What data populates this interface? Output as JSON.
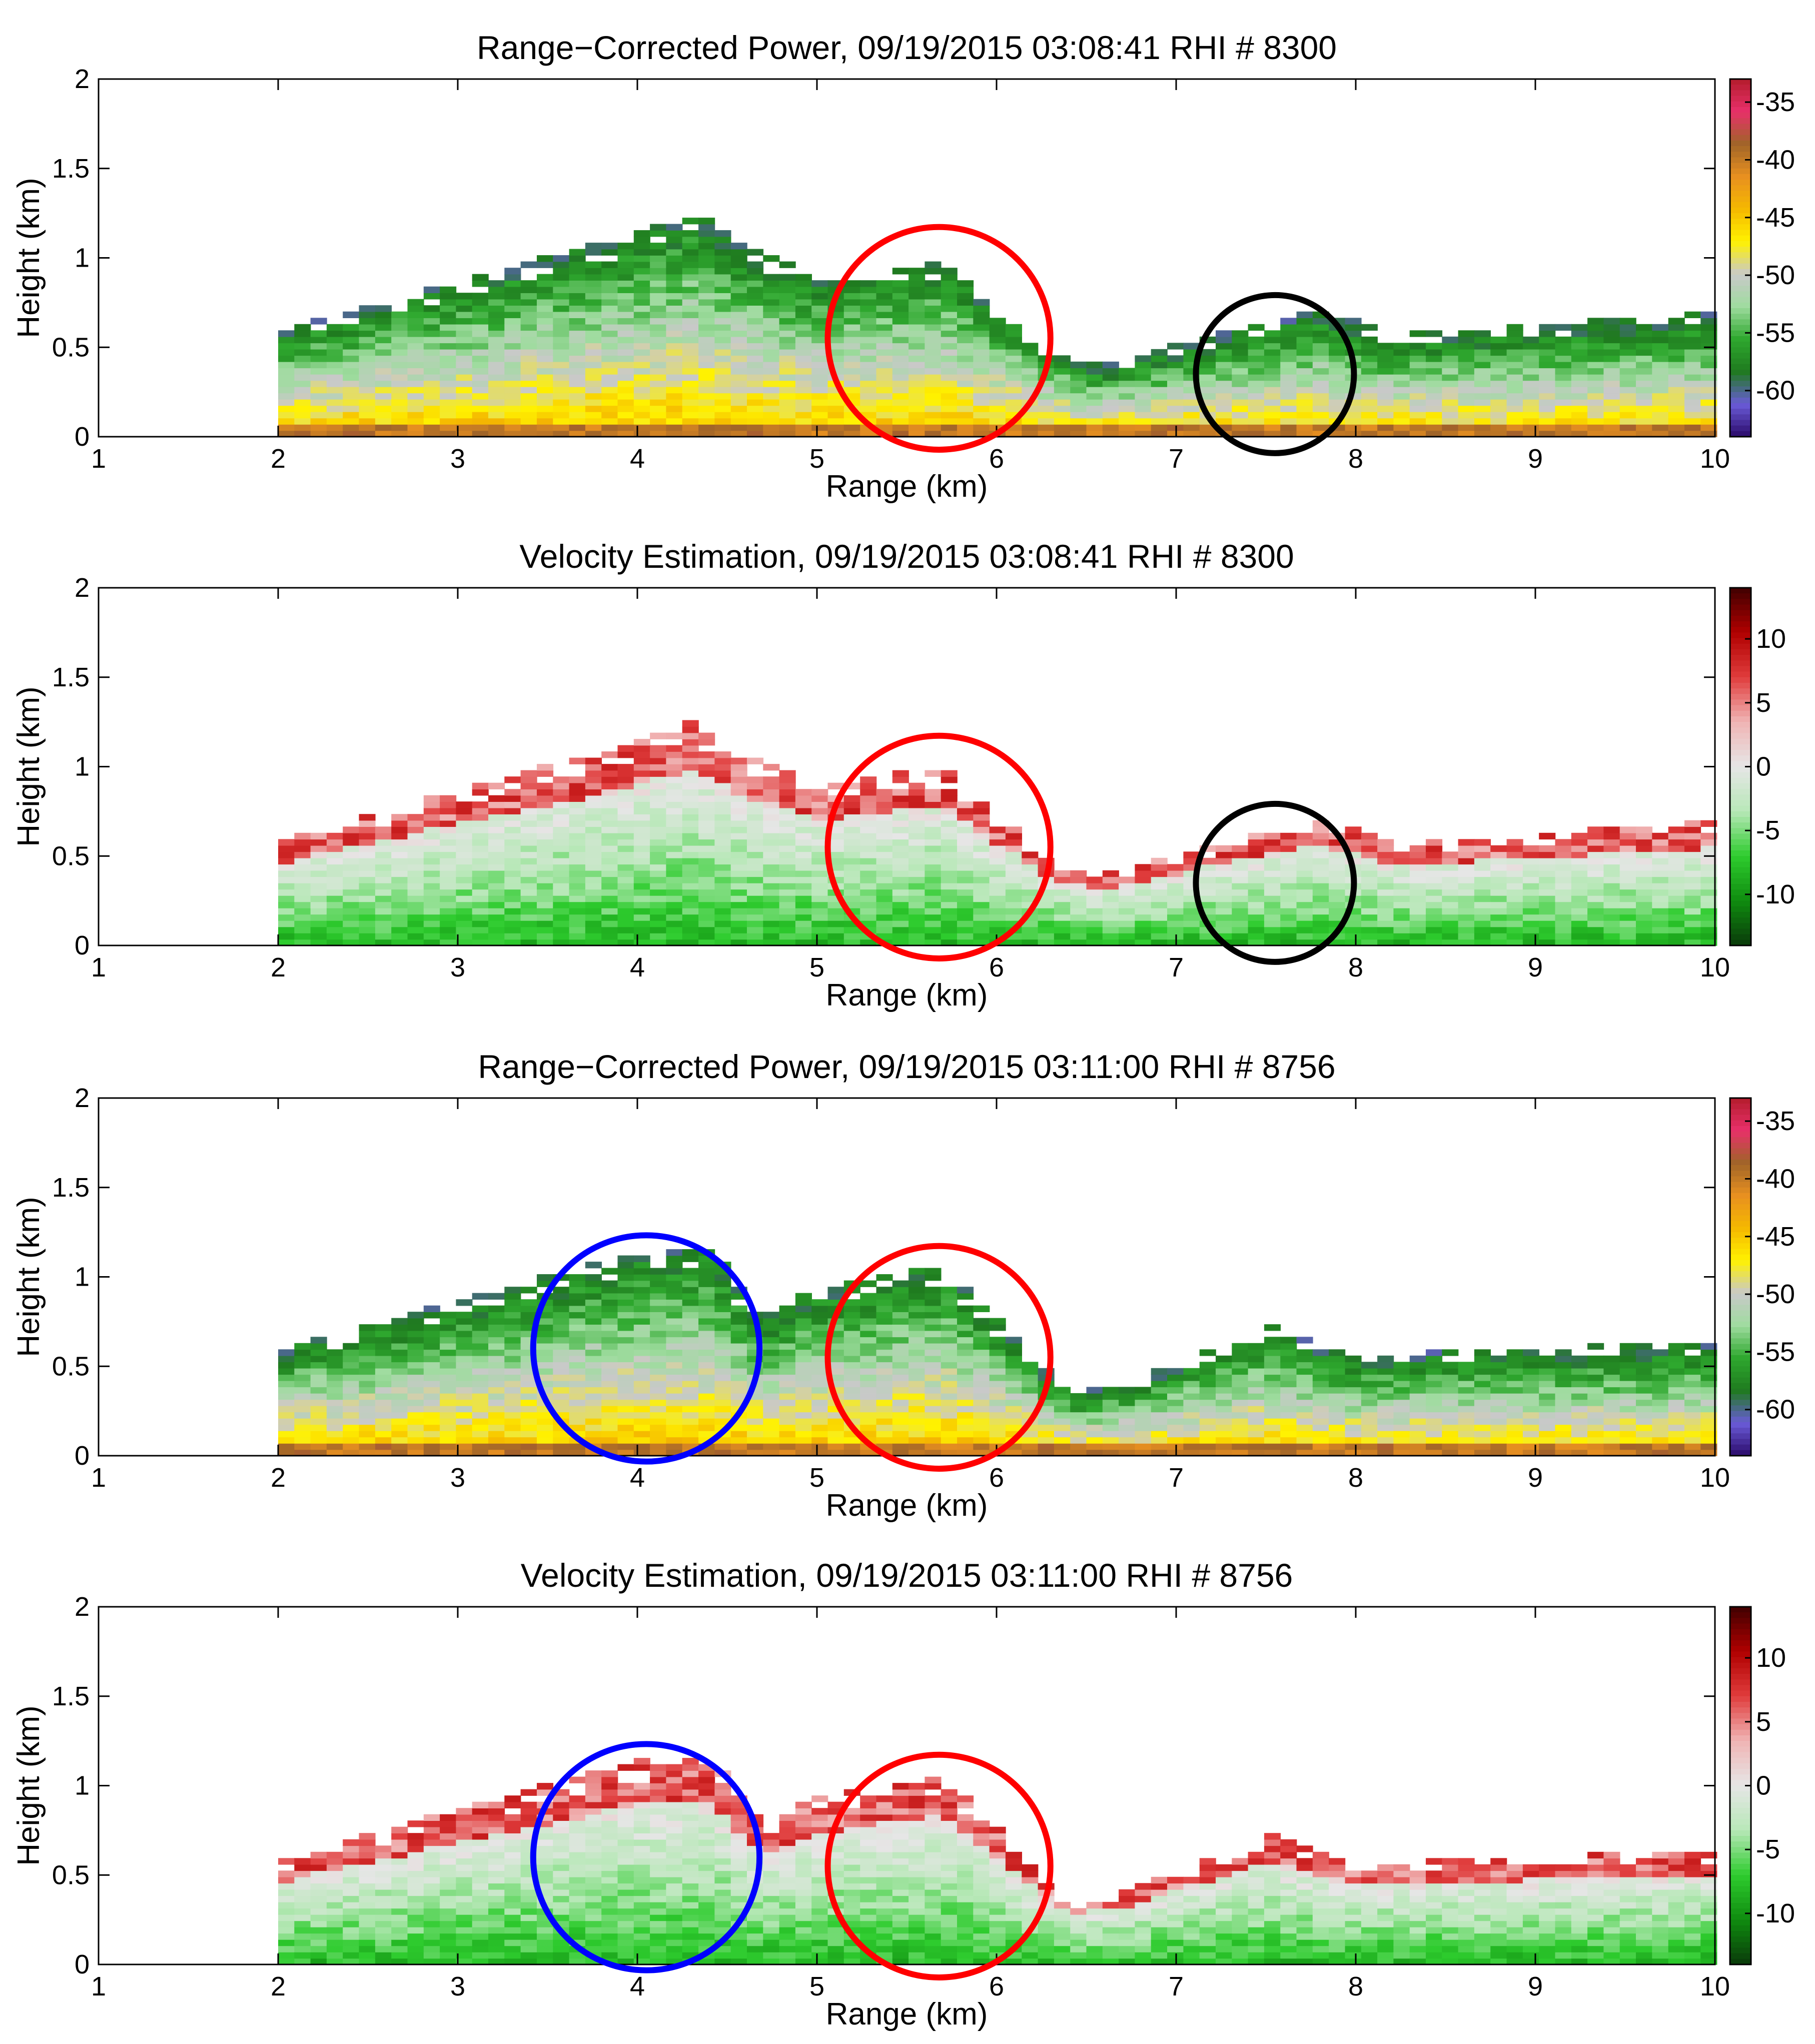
{
  "figure": {
    "description_units": "range km, height km",
    "colors": {
      "power_colormap": [
        "#2a0a6a",
        "#6a5bd8",
        "#1f7a1f",
        "#2ea82e",
        "#9fdc9f",
        "#c9c9c9",
        "#fff200",
        "#f5b800",
        "#e89020",
        "#a06428",
        "#e8306a",
        "#b41c2c"
      ],
      "velocity_colormap": [
        "#0a3a0a",
        "#0f8c0f",
        "#2ecc2e",
        "#b8e8b8",
        "#e6e6e6",
        "#f0b4b4",
        "#e03c3c",
        "#b00000",
        "#400000"
      ],
      "circle_red": "#ff0000",
      "circle_black": "#000000",
      "circle_blue": "#0000ff"
    }
  },
  "chart_data": [
    {
      "type": "heatmap",
      "kind": "power",
      "title": "Range−Corrected Power, 09/19/2015 03:08:41 RHI # 8300",
      "xlabel": "Range (km)",
      "ylabel": "Height (km)",
      "xlim": [
        1,
        10
      ],
      "ylim": [
        0,
        2
      ],
      "xticks": [
        "1",
        "2",
        "3",
        "4",
        "5",
        "6",
        "7",
        "8",
        "9",
        "10"
      ],
      "yticks": [
        "0",
        "0.5",
        "1",
        "1.5",
        "2"
      ],
      "colorbar": {
        "range": [
          -64,
          -33
        ],
        "ticks": [
          "-35",
          "-40",
          "-45",
          "-50",
          "-55",
          "-60"
        ],
        "tick_values": [
          -35,
          -40,
          -45,
          -50,
          -55,
          -60
        ]
      },
      "echo_top_profile": {
        "range_km": [
          2,
          3,
          4,
          4.3,
          4.6,
          5.0,
          5.7,
          6.3,
          6.6,
          7.2,
          7.8,
          8.2,
          10
        ],
        "height_km": [
          0.57,
          0.85,
          1.12,
          1.25,
          1.05,
          0.88,
          0.98,
          0.45,
          0.38,
          0.55,
          0.7,
          0.55,
          0.68
        ]
      },
      "annotations": [
        {
          "shape": "circle",
          "color": "red",
          "center_km": [
            5.68,
            0.55
          ],
          "radius_km": 0.62
        },
        {
          "shape": "circle",
          "color": "black",
          "center_km": [
            7.55,
            0.35
          ],
          "radius_km": 0.44
        }
      ]
    },
    {
      "type": "heatmap",
      "kind": "velocity",
      "title": "Velocity Estimation, 09/19/2015 03:08:41 RHI # 8300",
      "xlabel": "Range (km)",
      "ylabel": "Height (km)",
      "xlim": [
        1,
        10
      ],
      "ylim": [
        0,
        2
      ],
      "xticks": [
        "1",
        "2",
        "3",
        "4",
        "5",
        "6",
        "7",
        "8",
        "9",
        "10"
      ],
      "yticks": [
        "0",
        "0.5",
        "1",
        "1.5",
        "2"
      ],
      "colorbar": {
        "range": [
          -14,
          14
        ],
        "ticks": [
          "10",
          "5",
          "0",
          "-5",
          "-10"
        ],
        "tick_values": [
          10,
          5,
          0,
          -5,
          -10
        ]
      },
      "echo_top_profile": {
        "range_km": [
          2,
          3,
          4,
          4.3,
          4.6,
          5.0,
          5.7,
          6.3,
          6.6,
          7.2,
          7.8,
          8.2,
          10
        ],
        "height_km": [
          0.57,
          0.85,
          1.12,
          1.25,
          1.05,
          0.88,
          0.98,
          0.45,
          0.38,
          0.55,
          0.7,
          0.55,
          0.68
        ]
      },
      "annotations": [
        {
          "shape": "circle",
          "color": "red",
          "center_km": [
            5.68,
            0.55
          ],
          "radius_km": 0.62
        },
        {
          "shape": "circle",
          "color": "black",
          "center_km": [
            7.55,
            0.35
          ],
          "radius_km": 0.44
        }
      ]
    },
    {
      "type": "heatmap",
      "kind": "power",
      "title": "Range−Corrected Power, 09/19/2015 03:11:00 RHI # 8756",
      "xlabel": "Range (km)",
      "ylabel": "Height (km)",
      "xlim": [
        1,
        10
      ],
      "ylim": [
        0,
        2
      ],
      "xticks": [
        "1",
        "2",
        "3",
        "4",
        "5",
        "6",
        "7",
        "8",
        "9",
        "10"
      ],
      "yticks": [
        "0",
        "0.5",
        "1",
        "1.5",
        "2"
      ],
      "colorbar": {
        "range": [
          -64,
          -33
        ],
        "ticks": [
          "-35",
          "-40",
          "-45",
          "-50",
          "-55",
          "-60"
        ],
        "tick_values": [
          -35,
          -40,
          -45,
          -50,
          -55,
          -60
        ]
      },
      "echo_top_profile": {
        "range_km": [
          2,
          3,
          4,
          4.4,
          4.7,
          5.0,
          5.7,
          6.4,
          6.8,
          7.5,
          8.0,
          10
        ],
        "height_km": [
          0.57,
          0.85,
          1.12,
          1.15,
          0.75,
          0.92,
          1.05,
          0.33,
          0.42,
          0.72,
          0.55,
          0.62
        ]
      },
      "annotations": [
        {
          "shape": "circle",
          "color": "blue",
          "center_km": [
            4.05,
            0.6
          ],
          "radius_km": 0.63
        },
        {
          "shape": "circle",
          "color": "red",
          "center_km": [
            5.68,
            0.55
          ],
          "radius_km": 0.62
        }
      ]
    },
    {
      "type": "heatmap",
      "kind": "velocity",
      "title": "Velocity Estimation, 09/19/2015 03:11:00 RHI # 8756",
      "xlabel": "Range (km)",
      "ylabel": "Height (km)",
      "xlim": [
        1,
        10
      ],
      "ylim": [
        0,
        2
      ],
      "xticks": [
        "1",
        "2",
        "3",
        "4",
        "5",
        "6",
        "7",
        "8",
        "9",
        "10"
      ],
      "yticks": [
        "0",
        "0.5",
        "1",
        "1.5",
        "2"
      ],
      "colorbar": {
        "range": [
          -14,
          14
        ],
        "ticks": [
          "10",
          "5",
          "0",
          "-5",
          "-10"
        ],
        "tick_values": [
          10,
          5,
          0,
          -5,
          -10
        ]
      },
      "echo_top_profile": {
        "range_km": [
          2,
          3,
          4,
          4.4,
          4.7,
          5.0,
          5.7,
          6.4,
          6.8,
          7.5,
          8.0,
          10
        ],
        "height_km": [
          0.57,
          0.85,
          1.12,
          1.15,
          0.75,
          0.92,
          1.05,
          0.33,
          0.42,
          0.72,
          0.55,
          0.62
        ]
      },
      "annotations": [
        {
          "shape": "circle",
          "color": "blue",
          "center_km": [
            4.05,
            0.6
          ],
          "radius_km": 0.63
        },
        {
          "shape": "circle",
          "color": "red",
          "center_km": [
            5.68,
            0.55
          ],
          "radius_km": 0.62
        }
      ]
    }
  ]
}
